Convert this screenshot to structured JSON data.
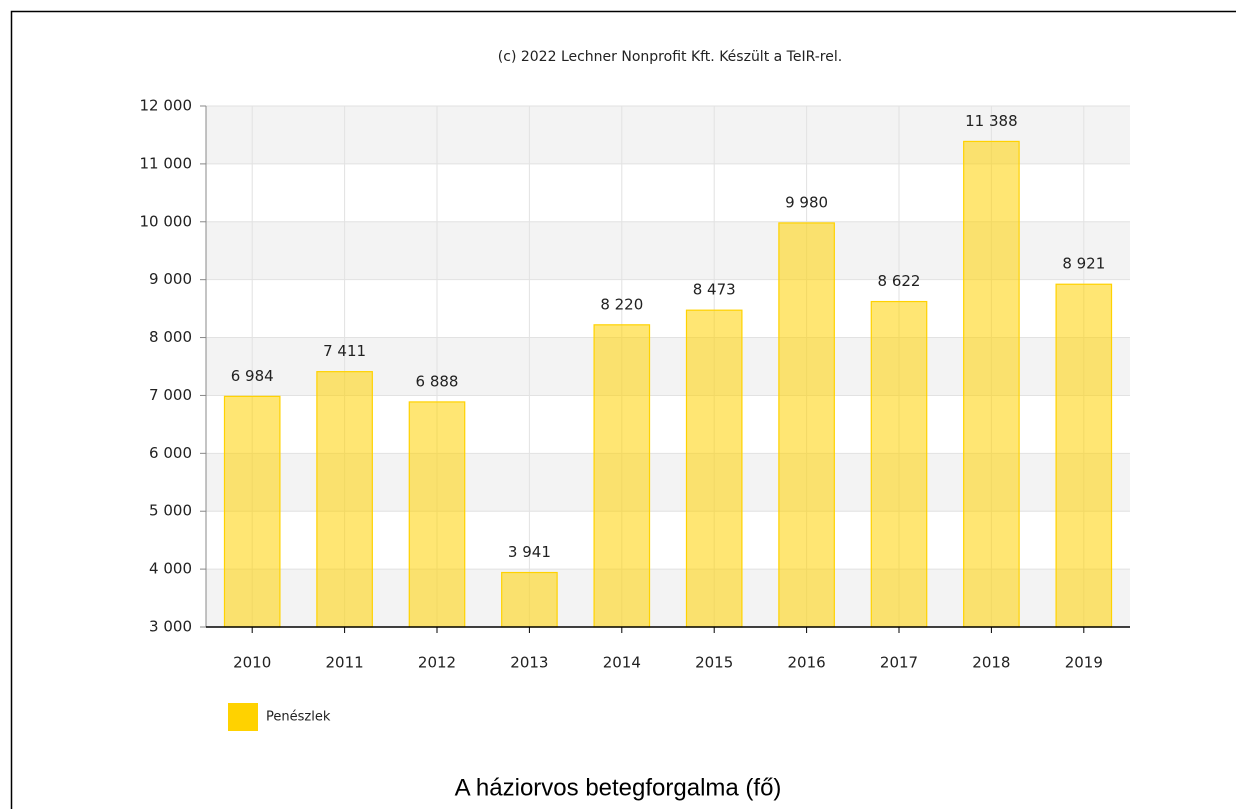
{
  "chart_data": {
    "type": "bar",
    "subtitle": "(c) 2022 Lechner Nonprofit Kft. Készült a TeIR-rel.",
    "title": "A háziorvos betegforgalma (fő)",
    "categories": [
      "2010",
      "2011",
      "2012",
      "2013",
      "2014",
      "2015",
      "2016",
      "2017",
      "2018",
      "2019"
    ],
    "series": [
      {
        "name": "Penészlek",
        "color": "#ffd200",
        "values": [
          6984,
          7411,
          6888,
          3941,
          8220,
          8473,
          9980,
          8622,
          11388,
          8921
        ],
        "value_labels": [
          "6 984",
          "7 411",
          "6 888",
          "3 941",
          "8 220",
          "8 473",
          "9 980",
          "8 622",
          "11 388",
          "8 921"
        ]
      }
    ],
    "ylim": [
      3000,
      12000
    ],
    "yticks": [
      {
        "value": 3000,
        "label": "3 000"
      },
      {
        "value": 4000,
        "label": "4 000"
      },
      {
        "value": 5000,
        "label": "5 000"
      },
      {
        "value": 6000,
        "label": "6 000"
      },
      {
        "value": 7000,
        "label": "7 000"
      },
      {
        "value": 8000,
        "label": "8 000"
      },
      {
        "value": 9000,
        "label": "9 000"
      },
      {
        "value": 10000,
        "label": "10 000"
      },
      {
        "value": 11000,
        "label": "11 000"
      },
      {
        "value": 12000,
        "label": "12 000"
      }
    ],
    "grid": true
  }
}
